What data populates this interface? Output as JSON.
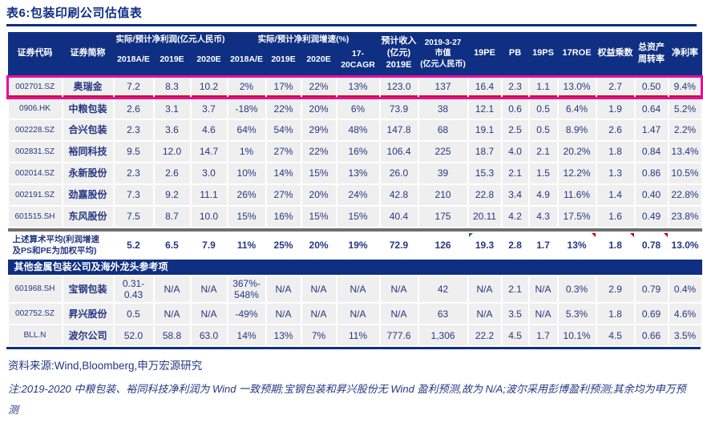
{
  "page": {
    "title": "表6:包装印刷公司估值表"
  },
  "colors": {
    "header_bg": "#0f2f82",
    "text": "#253782",
    "highlight_border": "#e60d9e",
    "highlight_inner_rule": "#bb1a1a",
    "cell_bg": "#efefef",
    "separator_band": "#6e6e6e",
    "marker_green": "#1f7a2e",
    "marker_red": "#c00000"
  },
  "table": {
    "header_groups": [
      {
        "id": "code",
        "text": "证券代码",
        "rs": 2
      },
      {
        "id": "name",
        "text": "证券简称",
        "rs": 2
      },
      {
        "id": "profit-group",
        "text": "实际/预计净利润(亿元人民币)",
        "cs": 3,
        "cls": "grp"
      },
      {
        "id": "growth-group",
        "text": "实际/预计净利润增速(%)",
        "cs": 4,
        "cls": "grp"
      },
      {
        "id": "revenue",
        "text": "预计收入\n(亿元)\n2019E",
        "rs": 2
      },
      {
        "id": "mktcap",
        "text": "2019-3-27\n市值\n(亿元人民币)",
        "rs": 2,
        "cls": "small"
      },
      {
        "id": "19pe",
        "text": "19PE",
        "rs": 2
      },
      {
        "id": "pb",
        "text": "PB",
        "rs": 2
      },
      {
        "id": "19ps",
        "text": "19PS",
        "rs": 2
      },
      {
        "id": "17roe",
        "text": "17ROE",
        "rs": 2
      },
      {
        "id": "equity-multiplier",
        "text": "权益乘数",
        "rs": 2
      },
      {
        "id": "asset-turnover",
        "text": "总资产\n周转率",
        "rs": 2
      },
      {
        "id": "net-margin",
        "text": "净利率",
        "rs": 2
      }
    ],
    "header_sub": [
      "2018A/E",
      "2019E",
      "2020E",
      "2018A/E",
      "2019E",
      "2020E",
      "17-20CAGR"
    ],
    "rows": [
      {
        "code": "002701.SZ",
        "name": "奥瑞金",
        "highlight": true,
        "values": [
          "7.2",
          "8.3",
          "10.2",
          "2%",
          "17%",
          "22%",
          "13%",
          "123.0",
          "137",
          "16.4",
          "2.3",
          "1.1",
          "13.0%",
          "2.7",
          "0.50",
          "9.4%"
        ]
      },
      {
        "code": "0906.HK",
        "name": "中粮包装",
        "values": [
          "2.6",
          "3.1",
          "3.7",
          "-18%",
          "22%",
          "20%",
          "6%",
          "73.9",
          "38",
          "12.1",
          "0.6",
          "0.5",
          "6.4%",
          "1.9",
          "0.64",
          "5.2%"
        ]
      },
      {
        "code": "002228.SZ",
        "name": "合兴包装",
        "values": [
          "2.3",
          "3.6",
          "4.6",
          "64%",
          "54%",
          "29%",
          "48%",
          "147.8",
          "68",
          "19.1",
          "2.5",
          "0.5",
          "8.9%",
          "2.6",
          "1.47",
          "2.2%"
        ]
      },
      {
        "code": "002831.SZ",
        "name": "裕同科技",
        "values": [
          "9.5",
          "12.0",
          "14.7",
          "1%",
          "27%",
          "22%",
          "16%",
          "106.4",
          "225",
          "18.7",
          "4.0",
          "2.1",
          "20.2%",
          "1.8",
          "0.84",
          "13.4%"
        ]
      },
      {
        "code": "002014.SZ",
        "name": "永新股份",
        "values": [
          "2.3",
          "2.6",
          "3.0",
          "10%",
          "14%",
          "15%",
          "13%",
          "26.0",
          "39",
          "15.3",
          "2.1",
          "1.5",
          "12.2%",
          "1.3",
          "0.86",
          "10.5%"
        ]
      },
      {
        "code": "002191.SZ",
        "name": "劲嘉股份",
        "values": [
          "7.3",
          "9.2",
          "11.1",
          "26%",
          "27%",
          "20%",
          "24%",
          "42.8",
          "210",
          "22.8",
          "3.4",
          "4.9",
          "11.6%",
          "1.4",
          "0.40",
          "22.8%"
        ]
      },
      {
        "code": "601515.SH",
        "name": "东风股份",
        "values": [
          "7.5",
          "8.7",
          "10.0",
          "15%",
          "16%",
          "15%",
          "15%",
          "40.4",
          "175",
          "20.11",
          "4.2",
          "4.3",
          "17.5%",
          "1.6",
          "0.49",
          "23.8%"
        ]
      }
    ],
    "summary_row": {
      "label": "上述算术平均(利润增速\n及PS和PE为加权平均)",
      "values": [
        "5.2",
        "6.5",
        "7.9",
        "11%",
        "25%",
        "20%",
        "19%",
        "72.9",
        "126",
        "19.3",
        "2.8",
        "1.7",
        "13%",
        "1.8",
        "0.78",
        "13.0%"
      ],
      "markers": {
        "9": "green-tl",
        "12": "red-tr",
        "13": "red-tr",
        "14": "red-tr"
      }
    },
    "section2_title": "其他金属包装公司及海外龙头参考项",
    "rows2": [
      {
        "code": "601968.SH",
        "name": "宝钢包装",
        "values": [
          "0.31-0.43",
          "N/A",
          "N/A",
          "367%-\n548%",
          "N/A",
          "N/A",
          "N/A",
          "N/A",
          "42",
          "N/A",
          "2.1",
          "N/A",
          "0.3%",
          "2.9",
          "0.79",
          "0.4%"
        ]
      },
      {
        "code": "002752.SZ",
        "name": "昇兴股份",
        "values": [
          "0.5",
          "N/A",
          "N/A",
          "-49%",
          "N/A",
          "N/A",
          "N/A",
          "N/A",
          "63",
          "N/A",
          "3.5",
          "N/A",
          "5.3%",
          "1.8",
          "0.69",
          "4.6%"
        ]
      },
      {
        "code": "BLL.N",
        "name": "波尔公司",
        "values": [
          "52.0",
          "58.8",
          "63.0",
          "14%",
          "13%",
          "7%",
          "11%",
          "777.6",
          "1,306",
          "22.2",
          "4.5",
          "1.7",
          "10.1%",
          "4.5",
          "0.66",
          "3.5%"
        ]
      }
    ]
  },
  "footer": {
    "source": "资料来源:Wind,Bloomberg,申万宏源研究",
    "note": "注:2019-2020 中粮包装、裕同科技净利润为 Wind 一致预期;宝钢包装和昇兴股份无 Wind 盈利预测,故为 N/A;波尔采用彭博盈利预测;其余均为申万预测"
  }
}
